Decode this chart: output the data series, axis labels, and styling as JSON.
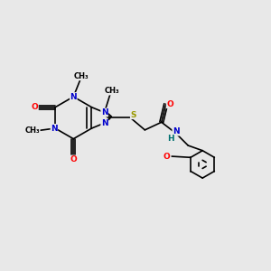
{
  "bg_color": "#e8e8e8",
  "bond_color": "#000000",
  "N_color": "#0000cc",
  "O_color": "#ff0000",
  "S_color": "#999900",
  "NH_color": "#007070",
  "font_size": 6.5,
  "bond_width": 1.2,
  "figsize": [
    3.0,
    3.0
  ],
  "dpi": 100,
  "xlim": [
    0,
    12
  ],
  "ylim": [
    0,
    12
  ]
}
